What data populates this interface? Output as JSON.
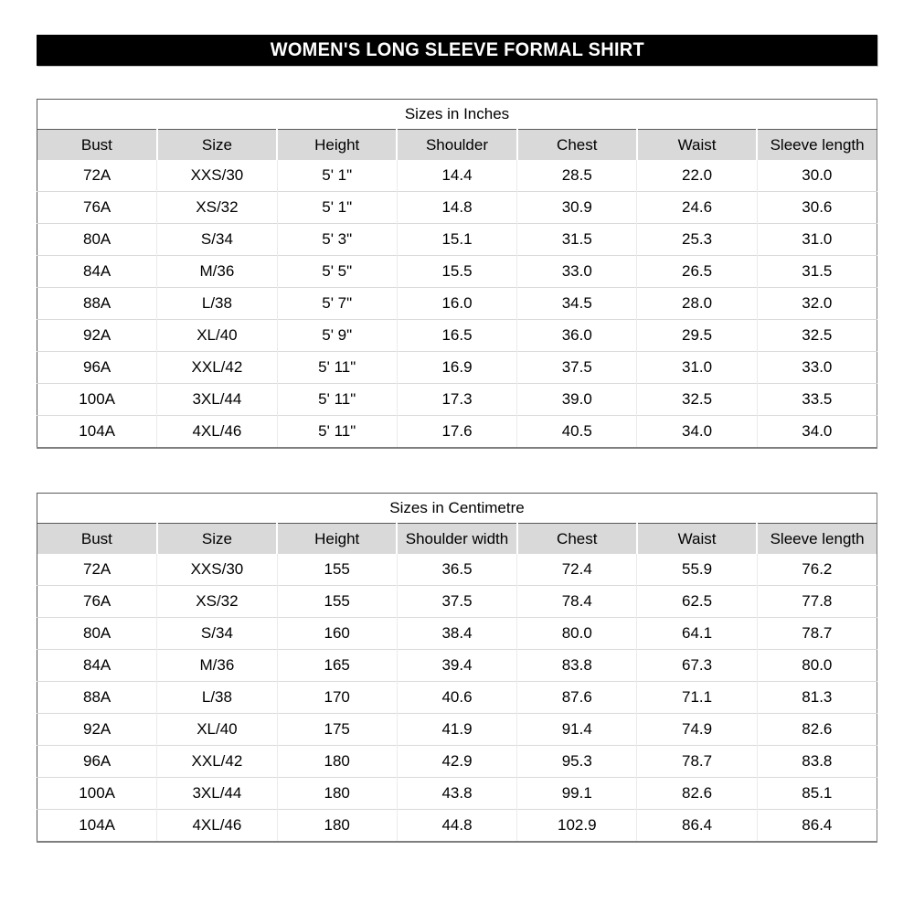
{
  "page": {
    "title": "WOMEN'S LONG SLEEVE FORMAL SHIRT"
  },
  "colors": {
    "banner_bg": "#000000",
    "banner_text": "#ffffff",
    "header_row_bg": "#d9d9d9",
    "outer_border": "#595959",
    "grid_line": "#d9d9d9"
  },
  "tables": [
    {
      "caption": "Sizes in Inches",
      "headers": [
        "Bust",
        "Size",
        "Height",
        "Shoulder",
        "Chest",
        "Waist",
        "Sleeve length"
      ],
      "rows": [
        [
          "72A",
          "XXS/30",
          "5' 1\"",
          "14.4",
          "28.5",
          "22.0",
          "30.0"
        ],
        [
          "76A",
          "XS/32",
          "5' 1\"",
          "14.8",
          "30.9",
          "24.6",
          "30.6"
        ],
        [
          "80A",
          "S/34",
          "5' 3\"",
          "15.1",
          "31.5",
          "25.3",
          "31.0"
        ],
        [
          "84A",
          "M/36",
          "5' 5\"",
          "15.5",
          "33.0",
          "26.5",
          "31.5"
        ],
        [
          "88A",
          "L/38",
          "5' 7\"",
          "16.0",
          "34.5",
          "28.0",
          "32.0"
        ],
        [
          "92A",
          "XL/40",
          "5' 9\"",
          "16.5",
          "36.0",
          "29.5",
          "32.5"
        ],
        [
          "96A",
          "XXL/42",
          "5' 11\"",
          "16.9",
          "37.5",
          "31.0",
          "33.0"
        ],
        [
          "100A",
          "3XL/44",
          "5' 11\"",
          "17.3",
          "39.0",
          "32.5",
          "33.5"
        ],
        [
          "104A",
          "4XL/46",
          "5' 11\"",
          "17.6",
          "40.5",
          "34.0",
          "34.0"
        ]
      ]
    },
    {
      "caption": "Sizes in Centimetre",
      "headers": [
        "Bust",
        "Size",
        "Height",
        "Shoulder width",
        "Chest",
        "Waist",
        "Sleeve length"
      ],
      "rows": [
        [
          "72A",
          "XXS/30",
          "155",
          "36.5",
          "72.4",
          "55.9",
          "76.2"
        ],
        [
          "76A",
          "XS/32",
          "155",
          "37.5",
          "78.4",
          "62.5",
          "77.8"
        ],
        [
          "80A",
          "S/34",
          "160",
          "38.4",
          "80.0",
          "64.1",
          "78.7"
        ],
        [
          "84A",
          "M/36",
          "165",
          "39.4",
          "83.8",
          "67.3",
          "80.0"
        ],
        [
          "88A",
          "L/38",
          "170",
          "40.6",
          "87.6",
          "71.1",
          "81.3"
        ],
        [
          "92A",
          "XL/40",
          "175",
          "41.9",
          "91.4",
          "74.9",
          "82.6"
        ],
        [
          "96A",
          "XXL/42",
          "180",
          "42.9",
          "95.3",
          "78.7",
          "83.8"
        ],
        [
          "100A",
          "3XL/44",
          "180",
          "43.8",
          "99.1",
          "82.6",
          "85.1"
        ],
        [
          "104A",
          "4XL/46",
          "180",
          "44.8",
          "102.9",
          "86.4",
          "86.4"
        ]
      ]
    }
  ]
}
